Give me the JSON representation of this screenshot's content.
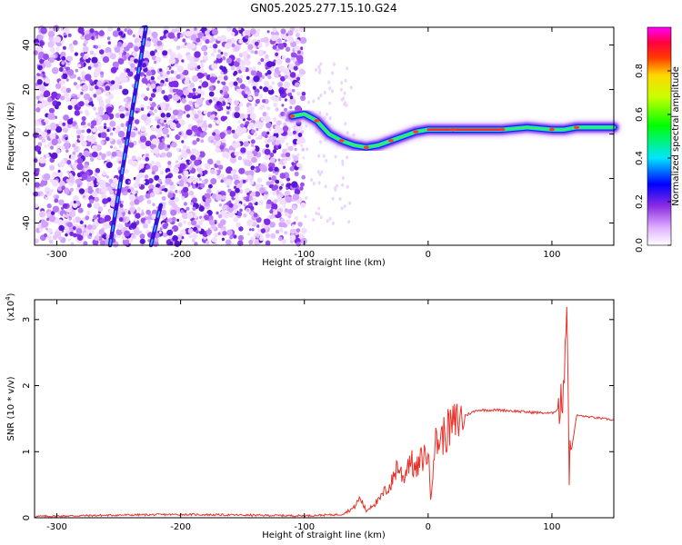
{
  "title": "GN05.2025.277.15.10.G24",
  "chart_data": [
    {
      "type": "heatmap",
      "xlabel": "Height of straight line (km)",
      "ylabel": "Frequency (Hz)",
      "xlim": [
        -318,
        150
      ],
      "ylim": [
        -50,
        48
      ],
      "xticks": [
        -300,
        -200,
        -100,
        0,
        100
      ],
      "yticks": [
        -40,
        -20,
        0,
        20,
        40
      ],
      "ridge": {
        "x": [
          -110,
          -100,
          -90,
          -80,
          -70,
          -60,
          -50,
          -40,
          -30,
          -20,
          -10,
          0,
          20,
          40,
          60,
          80,
          100,
          110,
          120,
          150
        ],
        "y": [
          8,
          9,
          6,
          0,
          -3,
          -5,
          -6,
          -5,
          -3,
          -1,
          1,
          2,
          2,
          2,
          2,
          3,
          2,
          2,
          3,
          3
        ]
      },
      "streaks": [
        {
          "x1": -257,
          "y1": -50,
          "x2": -228,
          "y2": 48
        },
        {
          "x1": -224,
          "y1": -50,
          "x2": -216,
          "y2": -32
        }
      ],
      "colorbar": {
        "label": "Normalized spectral amplitude",
        "range": [
          0,
          1
        ],
        "ticks": [
          0.0,
          0.2,
          0.4,
          0.6,
          0.8
        ],
        "tick_labels": [
          "0.0",
          "0.2",
          "0.4",
          "0.6",
          "0.8"
        ]
      }
    },
    {
      "type": "line",
      "xlabel": "Height of straight line (km)",
      "ylabel": "SNR (10 * v/v)",
      "multiplier": "(x10",
      "multiplier_exp": "4",
      "multiplier_end": ")",
      "xlim": [
        -318,
        150
      ],
      "ylim": [
        0,
        3.3
      ],
      "xticks": [
        -300,
        -200,
        -100,
        0,
        100
      ],
      "yticks": [
        0,
        1,
        2,
        3
      ],
      "color": "#e8322a",
      "series": [
        {
          "name": "SNR",
          "x": [
            -318,
            -250,
            -200,
            -150,
            -100,
            -70,
            -60,
            -55,
            -50,
            -45,
            -40,
            -35,
            -30,
            -25,
            -20,
            -15,
            -10,
            -5,
            0,
            2,
            5,
            10,
            20,
            30,
            40,
            60,
            80,
            100,
            108,
            110,
            112,
            114,
            120,
            150
          ],
          "y": [
            0.02,
            0.04,
            0.05,
            0.04,
            0.03,
            0.05,
            0.15,
            0.3,
            0.1,
            0.2,
            0.25,
            0.4,
            0.5,
            0.8,
            0.6,
            0.9,
            0.7,
            0.9,
            1.0,
            0.3,
            1.1,
            1.2,
            1.4,
            1.55,
            1.63,
            1.63,
            1.6,
            1.58,
            1.7,
            2.3,
            3.3,
            0.8,
            1.55,
            1.48
          ]
        }
      ]
    }
  ]
}
